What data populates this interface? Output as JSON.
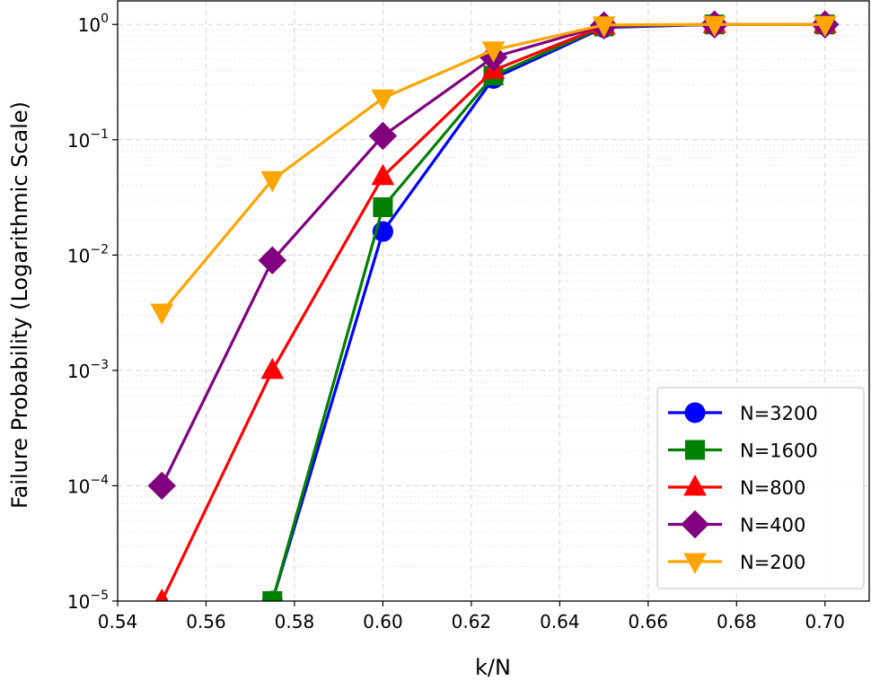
{
  "chart_data": {
    "type": "line",
    "xlabel": "k/N",
    "ylabel": "Failure Probability (Logarithmic Scale)",
    "y_scale": "log",
    "xlim": [
      0.54,
      0.71
    ],
    "ylim": [
      1e-05,
      1.6
    ],
    "x_ticks": [
      "0.54",
      "0.56",
      "0.58",
      "0.60",
      "0.62",
      "0.64",
      "0.66",
      "0.68",
      "0.70"
    ],
    "y_ticks": [
      {
        "base": "10",
        "exp": "0",
        "value": 1
      },
      {
        "base": "10",
        "exp": "−1",
        "value": 0.1
      },
      {
        "base": "10",
        "exp": "−2",
        "value": 0.01
      },
      {
        "base": "10",
        "exp": "−3",
        "value": 0.001
      },
      {
        "base": "10",
        "exp": "−4",
        "value": 0.0001
      },
      {
        "base": "10",
        "exp": "−5",
        "value": 1e-05
      }
    ],
    "grid": true,
    "legend_position": "lower-right",
    "x": [
      0.55,
      0.575,
      0.6,
      0.625,
      0.65,
      0.675,
      0.7
    ],
    "series": [
      {
        "name": "N=3200",
        "color": "#0000ff",
        "marker": "circle",
        "values": [
          null,
          1e-05,
          0.016,
          0.34,
          0.94,
          1.0,
          1.0
        ]
      },
      {
        "name": "N=1600",
        "color": "#008000",
        "marker": "square",
        "values": [
          null,
          1e-05,
          0.026,
          0.36,
          0.96,
          1.0,
          1.0
        ]
      },
      {
        "name": "N=800",
        "color": "#ff0000",
        "marker": "triangle-up",
        "values": [
          1e-05,
          0.001,
          0.048,
          0.4,
          0.97,
          1.0,
          1.0
        ]
      },
      {
        "name": "N=400",
        "color": "#800080",
        "marker": "diamond",
        "values": [
          0.0001,
          0.009,
          0.108,
          0.52,
          0.98,
          1.0,
          1.0
        ]
      },
      {
        "name": "N=200",
        "color": "#ffa500",
        "marker": "triangle-down",
        "values": [
          0.0032,
          0.045,
          0.23,
          0.6,
          0.99,
          1.0,
          1.0
        ]
      }
    ]
  }
}
